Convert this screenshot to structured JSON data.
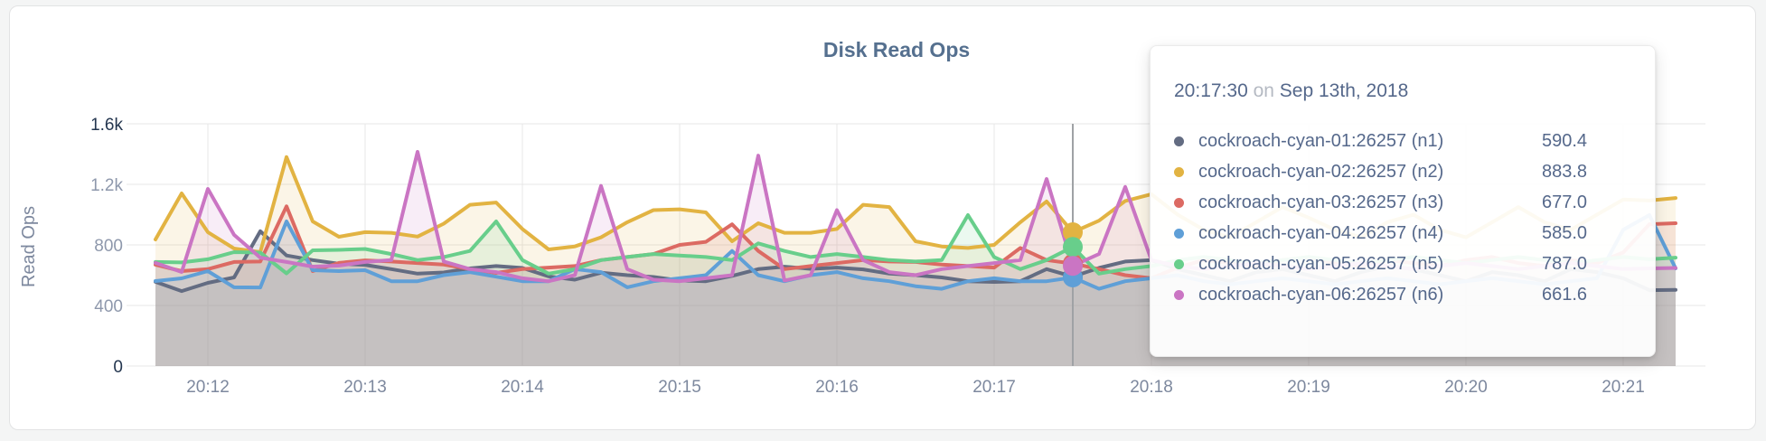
{
  "chart_data": {
    "type": "area",
    "title": "Disk Read Ops",
    "ylabel": "Read Ops",
    "ylim": [
      0,
      1600
    ],
    "ytick_values": [
      0,
      400,
      800,
      1200,
      1600
    ],
    "ytick_labels": [
      "0",
      "400",
      "800",
      "1.2k",
      "1.6k"
    ],
    "grid": true,
    "legend_position": "tooltip",
    "x_start_time": "20:11:40",
    "x_interval_seconds": 10,
    "xticks": [
      {
        "label": "20:12",
        "index": 2
      },
      {
        "label": "20:13",
        "index": 8
      },
      {
        "label": "20:14",
        "index": 14
      },
      {
        "label": "20:15",
        "index": 20
      },
      {
        "label": "20:16",
        "index": 26
      },
      {
        "label": "20:17",
        "index": 32
      },
      {
        "label": "20:18",
        "index": 38
      },
      {
        "label": "20:19",
        "index": 44
      },
      {
        "label": "20:20",
        "index": 50
      },
      {
        "label": "20:21",
        "index": 56
      }
    ],
    "series": [
      {
        "name": "cockroach-cyan-01:26257 (n1)",
        "short": "n1",
        "color": "#636c82",
        "values": [
          556,
          495,
          549,
          585,
          890,
          730,
          700,
          675,
          668,
          640,
          610,
          618,
          645,
          660,
          648,
          592,
          570,
          616,
          600,
          588,
          565,
          560,
          595,
          640,
          656,
          642,
          650,
          638,
          610,
          600,
          585,
          560,
          555,
          560,
          640,
          590.4,
          648,
          690,
          700,
          640,
          600,
          560,
          620,
          640,
          600,
          560,
          620,
          660,
          640,
          600,
          560,
          620,
          600,
          560,
          640,
          620,
          580,
          501,
          503
        ]
      },
      {
        "name": "cockroach-cyan-02:26257 (n2)",
        "short": "n2",
        "color": "#e2b342",
        "values": [
          836,
          1140,
          884,
          776,
          752,
          1380,
          955,
          854,
          884,
          880,
          855,
          940,
          1065,
          1080,
          905,
          770,
          790,
          850,
          950,
          1030,
          1035,
          1015,
          824,
          943,
          880,
          880,
          905,
          1065,
          1050,
          824,
          790,
          780,
          800,
          950,
          1087,
          883.8,
          960,
          1090,
          1135,
          1000,
          900,
          850,
          950,
          1050,
          980,
          900,
          850,
          950,
          1000,
          900,
          850,
          950,
          1050,
          950,
          900,
          1000,
          1100,
          1093,
          1110
        ]
      },
      {
        "name": "cockroach-cyan-03:26257 (n3)",
        "short": "n3",
        "color": "#dc6a63",
        "values": [
          669,
          627,
          640,
          687,
          690,
          1055,
          627,
          681,
          698,
          690,
          680,
          670,
          640,
          615,
          640,
          650,
          660,
          700,
          720,
          740,
          800,
          820,
          936,
          760,
          640,
          660,
          680,
          700,
          690,
          687,
          670,
          660,
          650,
          780,
          700,
          677,
          640,
          600,
          580,
          650,
          700,
          680,
          660,
          700,
          720,
          680,
          660,
          700,
          680,
          660,
          700,
          720,
          680,
          660,
          700,
          680,
          750,
          937,
          943
        ]
      },
      {
        "name": "cockroach-cyan-04:26257 (n4)",
        "short": "n4",
        "color": "#5f9fd7",
        "values": [
          561,
          579,
          627,
          520,
          519,
          955,
          633,
          627,
          633,
          560,
          560,
          600,
          620,
          590,
          560,
          560,
          640,
          620,
          520,
          560,
          580,
          600,
          760,
          600,
          560,
          600,
          620,
          580,
          560,
          527,
          510,
          560,
          580,
          560,
          560,
          585,
          510,
          560,
          580,
          600,
          560,
          540,
          560,
          580,
          560,
          540,
          560,
          580,
          560,
          540,
          560,
          580,
          560,
          540,
          560,
          580,
          900,
          997,
          645
        ]
      },
      {
        "name": "cockroach-cyan-05:26257 (n5)",
        "short": "n5",
        "color": "#68ce8b",
        "values": [
          687,
          684,
          705,
          752,
          749,
          612,
          764,
          767,
          773,
          740,
          700,
          720,
          760,
          955,
          700,
          610,
          640,
          700,
          720,
          740,
          730,
          720,
          700,
          810,
          760,
          720,
          740,
          720,
          700,
          690,
          700,
          997,
          720,
          640,
          700,
          787,
          610,
          640,
          660,
          700,
          720,
          700,
          680,
          700,
          720,
          700,
          680,
          700,
          720,
          700,
          680,
          700,
          720,
          700,
          680,
          700,
          720,
          705,
          716
        ]
      },
      {
        "name": "cockroach-cyan-06:26257 (n6)",
        "short": "n6",
        "color": "#ca75c3",
        "values": [
          681,
          621,
          1170,
          866,
          716,
          687,
          657,
          663,
          687,
          700,
          1415,
          690,
          640,
          620,
          580,
          560,
          600,
          1190,
          640,
          570,
          560,
          580,
          600,
          1390,
          565,
          600,
          1030,
          700,
          620,
          600,
          640,
          660,
          680,
          700,
          1236,
          661.6,
          740,
          1183,
          700,
          660,
          640,
          660,
          680,
          660,
          640,
          660,
          680,
          660,
          640,
          660,
          680,
          660,
          640,
          660,
          680,
          660,
          640,
          645,
          648
        ]
      }
    ]
  },
  "hover": {
    "index": 35,
    "time": "20:17:30"
  },
  "tooltip": {
    "time": "20:17:30",
    "on_word": "on",
    "date": "Sep 13th, 2018",
    "values": [
      "590.4",
      "883.8",
      "677.0",
      "585.0",
      "787.0",
      "661.6"
    ]
  },
  "colors": {
    "grid": "#e7e7e7",
    "crosshair": "#9fa2a5",
    "tick_minor": "#8e98ac",
    "tick_endpoint": "#24364f",
    "xtick": "#7d889e",
    "axis_label": "#7d889e"
  }
}
